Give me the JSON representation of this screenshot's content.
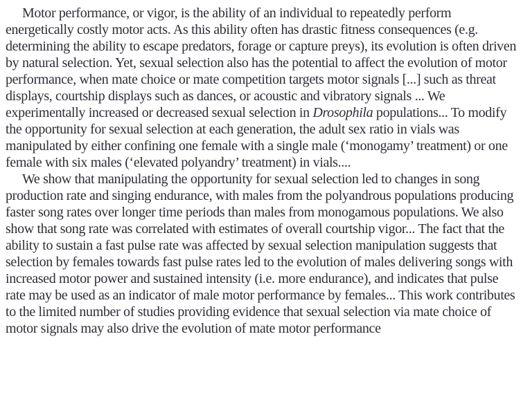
{
  "document": {
    "type": "paper-abstract-excerpt",
    "text_color": "#2d2d37",
    "background_color": "#ffffff",
    "paragraph1": {
      "before_italic": "Motor performance, or vigor, is the ability of an individual to repeatedly perform energetically costly motor acts. As this ability often has drastic fitness consequences (e.g. determining the ability to escape predators, forage or capture preys), its evolution is often driven by natural selection. Yet, sexual selection also has the potential to affect the evolution of motor performance, when mate choice or mate competition targets motor signals [...] such as threat displays, courtship displays such as dances, or acoustic and vibratory signals ... We experimentally increased or decreased sexual selection in ",
      "italic_term": "Drosophila",
      "after_italic": " populations... To modify the opportunity for sexual selection at each generation, the adult sex ratio in vials was manipulated by either confining one female with a single male (‘monogamy’ treatment) or one female with six males (‘elevated polyandry’ treatment) in vials...."
    },
    "paragraph2": {
      "text": "We show that manipulating the opportunity for sexual selection led to changes in song production rate and singing endurance, with males from the polyandrous populations producing faster song rates over longer time periods than males from monogamous populations. We also show that song rate was correlated with estimates of overall courtship vigor... The fact that the ability to sustain a fast pulse rate was affected by sexual selection manipulation suggests that selection by females towards fast pulse rates led to the evolution of males delivering songs with increased motor power and sustained intensity (i.e. more endurance), and indicates that pulse rate may be used as an indicator of male motor performance by females... This work contributes to the limited number of studies providing evidence that sexual selection via mate choice of motor signals may also drive the evolution of mate motor performance"
    }
  }
}
